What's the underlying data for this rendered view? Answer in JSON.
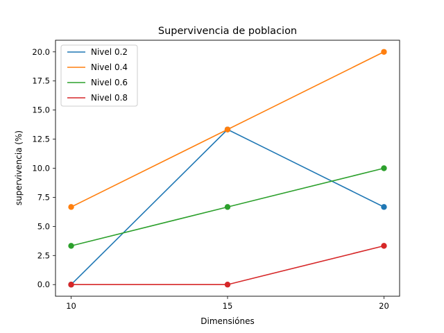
{
  "chart_data": {
    "type": "line",
    "title": "Supervivencia de poblacion",
    "xlabel": "Dimensiónes",
    "ylabel": "supervivencia (%)",
    "x": [
      10,
      15,
      20
    ],
    "x_ticks": [
      "10",
      "15",
      "20"
    ],
    "y_ticks": [
      "0.0",
      "2.5",
      "5.0",
      "7.5",
      "10.0",
      "12.5",
      "15.0",
      "17.5",
      "20.0"
    ],
    "xlim": [
      9.5,
      20.5
    ],
    "ylim": [
      -1.0,
      21.0
    ],
    "grid": false,
    "legend_position": "top-left",
    "series": [
      {
        "name": "Nivel 0.2",
        "color": "#1f77b4",
        "values": [
          0.0,
          13.33,
          6.67
        ]
      },
      {
        "name": "Nivel 0.4",
        "color": "#ff7f0e",
        "values": [
          6.67,
          13.33,
          20.0
        ]
      },
      {
        "name": "Nivel 0.6",
        "color": "#2ca02c",
        "values": [
          3.33,
          6.67,
          10.0
        ]
      },
      {
        "name": "Nivel 0.8",
        "color": "#d62728",
        "values": [
          0.0,
          0.0,
          3.33
        ]
      }
    ]
  }
}
